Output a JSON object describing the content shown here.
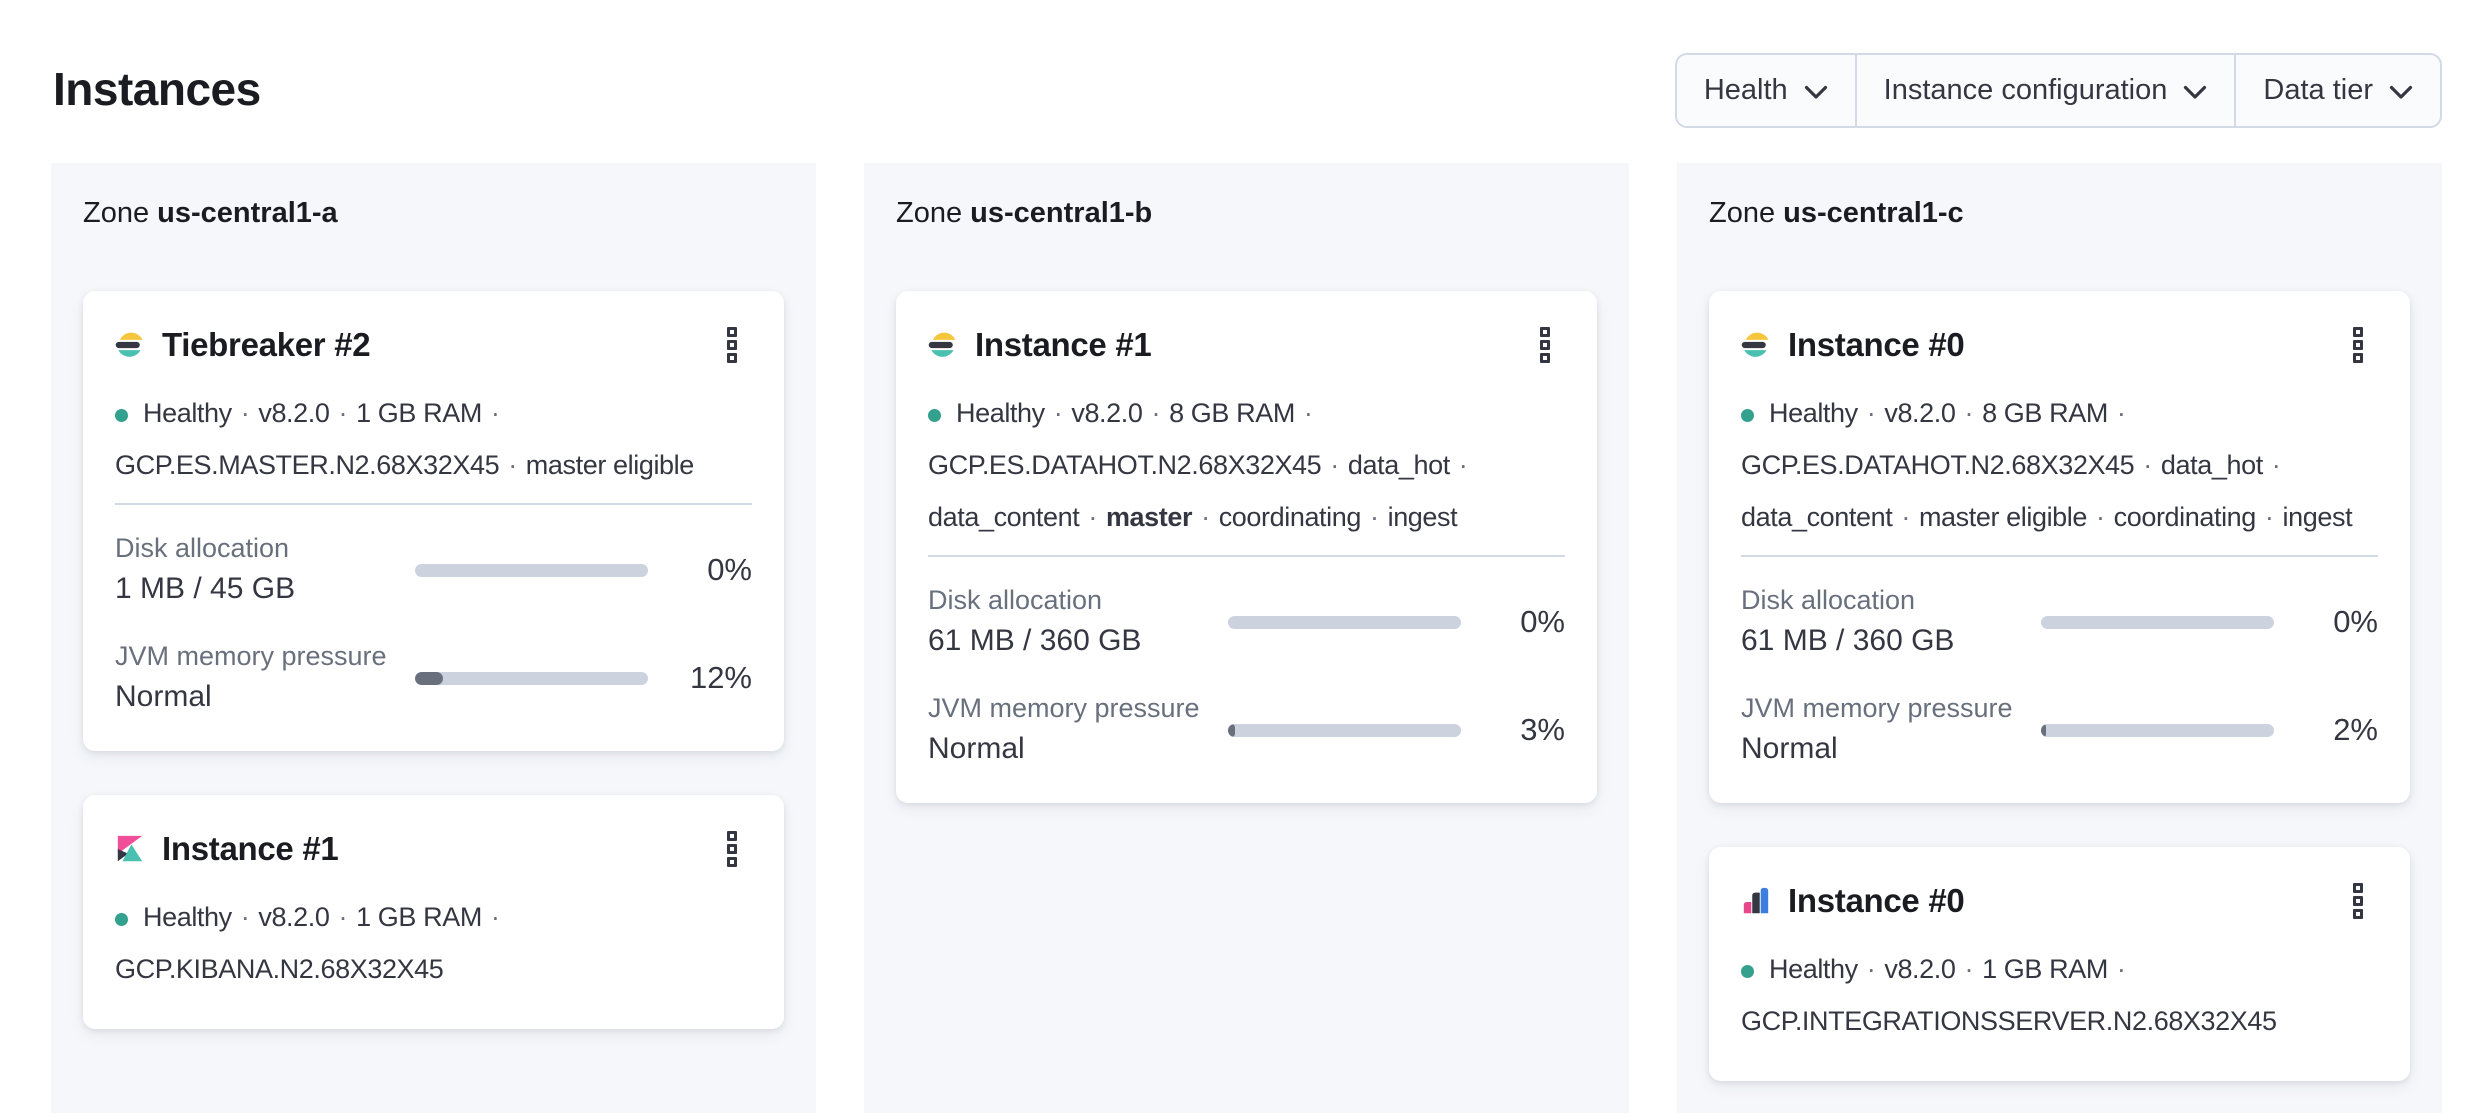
{
  "header": {
    "title": "Instances"
  },
  "filters": [
    {
      "label": "Health"
    },
    {
      "label": "Instance configuration"
    },
    {
      "label": "Data tier"
    }
  ],
  "colors": {
    "healthy_dot": "#34a08e",
    "progress_track": "#ccd3df",
    "progress_fill": "#69707d",
    "panel_background": "#f5f7fa",
    "es_logo_yellow": "#f5c63d",
    "es_logo_dark": "#343741",
    "es_logo_teal": "#4ac0b1",
    "kibana_pink": "#f04e98",
    "integrations_pink": "#e8478b",
    "integrations_blue": "#3c7ee0"
  },
  "icons": {
    "menu": "boxes-vertical-kebab",
    "dropdown": "chevron-down"
  },
  "zones": [
    {
      "label": "Zone",
      "name": "us-central1-a",
      "instances": [
        {
          "logo": "elasticsearch",
          "title": "Tiebreaker #2",
          "meta_lines": [
            {
              "segments": [
                {
                  "text": "Healthy",
                  "health": true
                },
                {
                  "text": "v8.2.0"
                },
                {
                  "text": "1 GB RAM"
                }
              ],
              "trailing_sep": true
            },
            {
              "segments": [
                {
                  "text": "GCP.ES.MASTER.N2.68X32X45"
                },
                {
                  "text": "master eligible"
                }
              ],
              "trailing_sep": false
            }
          ],
          "metrics": [
            {
              "label": "Disk allocation",
              "value": "1 MB / 45 GB",
              "percent": "0%",
              "fill": 0
            },
            {
              "label": "JVM memory pressure",
              "value": "Normal",
              "percent": "12%",
              "fill": 12
            }
          ]
        },
        {
          "logo": "kibana",
          "title": "Instance #1",
          "meta_lines": [
            {
              "segments": [
                {
                  "text": "Healthy",
                  "health": true
                },
                {
                  "text": "v8.2.0"
                },
                {
                  "text": "1 GB RAM"
                }
              ],
              "trailing_sep": true
            },
            {
              "segments": [
                {
                  "text": "GCP.KIBANA.N2.68X32X45"
                }
              ],
              "trailing_sep": false
            }
          ],
          "metrics": []
        }
      ]
    },
    {
      "label": "Zone",
      "name": "us-central1-b",
      "instances": [
        {
          "logo": "elasticsearch",
          "title": "Instance #1",
          "meta_lines": [
            {
              "segments": [
                {
                  "text": "Healthy",
                  "health": true
                },
                {
                  "text": "v8.2.0"
                },
                {
                  "text": "8 GB RAM"
                }
              ],
              "trailing_sep": true
            },
            {
              "segments": [
                {
                  "text": "GCP.ES.DATAHOT.N2.68X32X45"
                },
                {
                  "text": "data_hot"
                }
              ],
              "trailing_sep": true
            },
            {
              "segments": [
                {
                  "text": "data_content"
                },
                {
                  "text": "master",
                  "bold": true
                },
                {
                  "text": "coordinating"
                },
                {
                  "text": "ingest"
                }
              ],
              "trailing_sep": false
            }
          ],
          "metrics": [
            {
              "label": "Disk allocation",
              "value": "61 MB / 360 GB",
              "percent": "0%",
              "fill": 0
            },
            {
              "label": "JVM memory pressure",
              "value": "Normal",
              "percent": "3%",
              "fill": 3
            }
          ]
        }
      ]
    },
    {
      "label": "Zone",
      "name": "us-central1-c",
      "instances": [
        {
          "logo": "elasticsearch",
          "title": "Instance #0",
          "meta_lines": [
            {
              "segments": [
                {
                  "text": "Healthy",
                  "health": true
                },
                {
                  "text": "v8.2.0"
                },
                {
                  "text": "8 GB RAM"
                }
              ],
              "trailing_sep": true
            },
            {
              "segments": [
                {
                  "text": "GCP.ES.DATAHOT.N2.68X32X45"
                },
                {
                  "text": "data_hot"
                }
              ],
              "trailing_sep": true
            },
            {
              "segments": [
                {
                  "text": "data_content"
                },
                {
                  "text": "master eligible"
                },
                {
                  "text": "coordinating"
                },
                {
                  "text": "ingest"
                }
              ],
              "trailing_sep": false
            }
          ],
          "metrics": [
            {
              "label": "Disk allocation",
              "value": "61 MB / 360 GB",
              "percent": "0%",
              "fill": 0
            },
            {
              "label": "JVM memory pressure",
              "value": "Normal",
              "percent": "2%",
              "fill": 2
            }
          ]
        },
        {
          "logo": "integrations-server",
          "title": "Instance #0",
          "meta_lines": [
            {
              "segments": [
                {
                  "text": "Healthy",
                  "health": true
                },
                {
                  "text": "v8.2.0"
                },
                {
                  "text": "1 GB RAM"
                }
              ],
              "trailing_sep": true
            },
            {
              "segments": [
                {
                  "text": "GCP.INTEGRATIONSSERVER.N2.68X32X45"
                }
              ],
              "trailing_sep": false
            }
          ],
          "metrics": []
        }
      ]
    }
  ]
}
